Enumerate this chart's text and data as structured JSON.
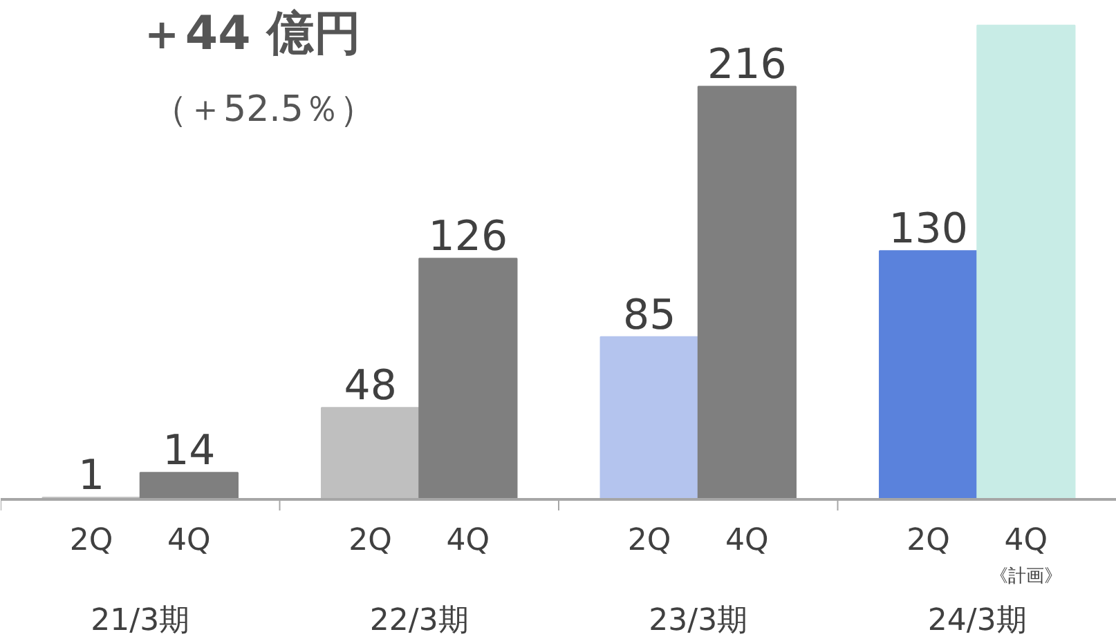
{
  "chart_data": {
    "type": "bar",
    "categories": [
      "21/3期",
      "22/3期",
      "23/3期",
      "24/3期"
    ],
    "series": [
      {
        "name": "2Q",
        "colors": [
          "#bfbfbf",
          "#bfbfbf",
          "#b4c4ee",
          "#5a82dc"
        ],
        "values": [
          1,
          48,
          85,
          130
        ],
        "value_labels": [
          "1",
          "48",
          "85",
          "130"
        ]
      },
      {
        "name": "4Q",
        "colors": [
          "#7f7f7f",
          "#7f7f7f",
          "#7f7f7f",
          "#c8ece6"
        ],
        "values": [
          14,
          126,
          216,
          248
        ],
        "value_labels": [
          "14",
          "126",
          "216",
          null
        ]
      }
    ],
    "annotations": [
      "＋44 億円",
      "（＋52.5％）",
      "《計画》"
    ],
    "grid": false,
    "legend": false
  }
}
